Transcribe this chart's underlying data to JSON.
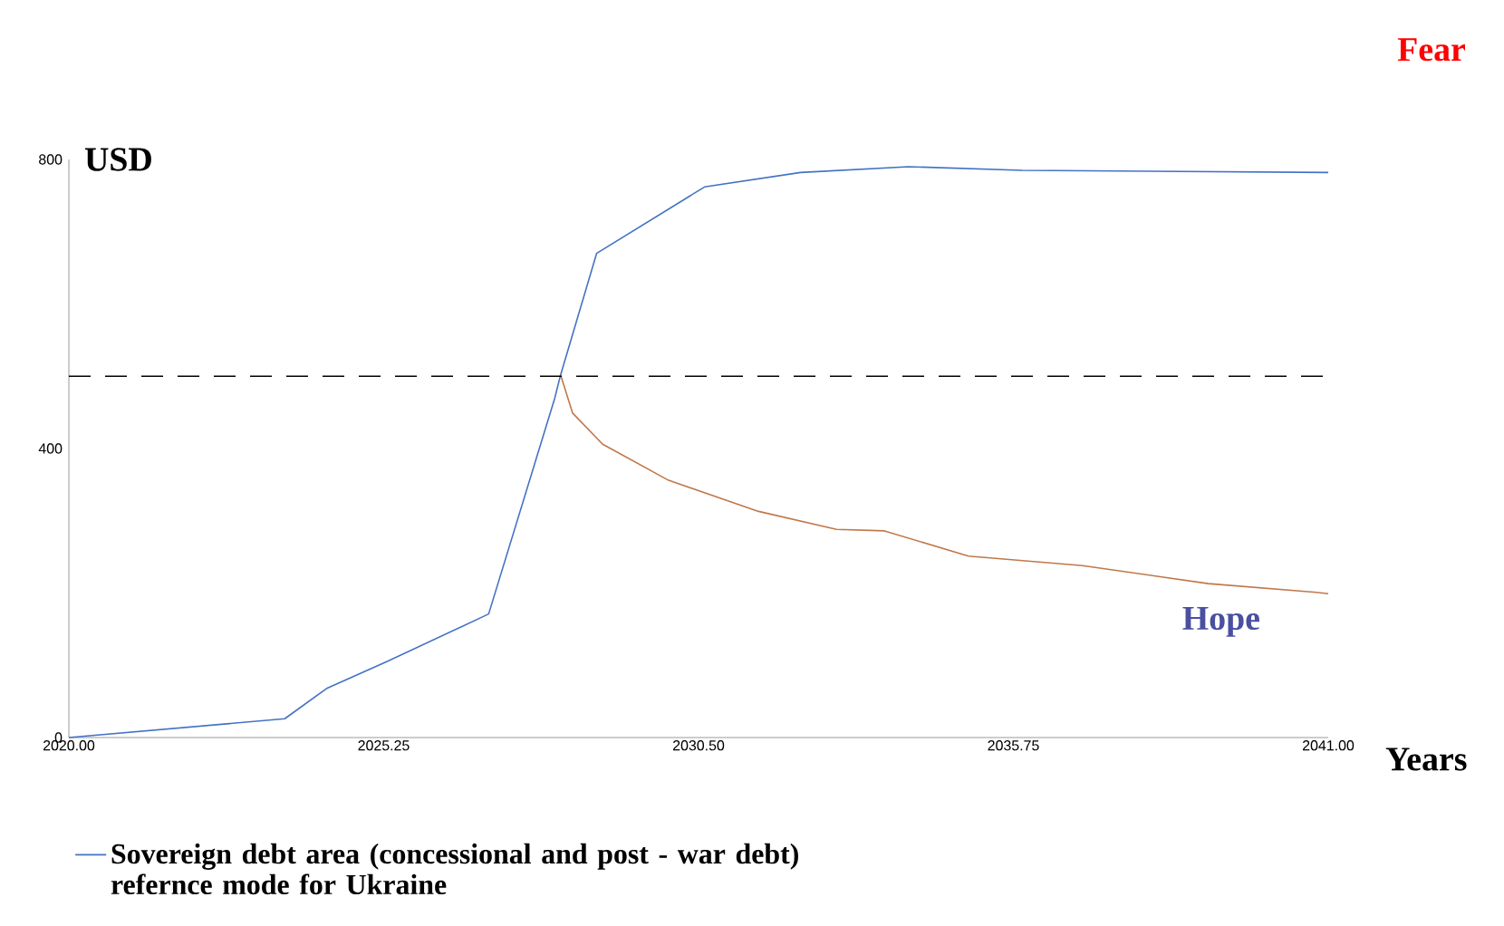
{
  "chart_data": {
    "type": "line",
    "xlabel": "Years",
    "ylabel": "USD",
    "xlim": [
      2020,
      2041
    ],
    "ylim": [
      0,
      800
    ],
    "xticks": [
      {
        "value": 2020,
        "label": "2020.00"
      },
      {
        "value": 2025.25,
        "label": "2025.25"
      },
      {
        "value": 2030.5,
        "label": "2030.50"
      },
      {
        "value": 2035.75,
        "label": "2035.75"
      },
      {
        "value": 2041,
        "label": "2041.00"
      }
    ],
    "yticks": [
      0,
      400,
      800
    ],
    "series": [
      {
        "name": "Sovereign debt area (concessional and post - war debt) refernce mode for Ukraine",
        "color": "#4472c4",
        "x": [
          2020,
          2023.6,
          2024.3,
          2025.3,
          2027.0,
          2028.1,
          2028.2,
          2028.8,
          2030.6,
          2032.2,
          2034.0,
          2035.9,
          2041.0
        ],
        "values": [
          0,
          26,
          68,
          105,
          171,
          469,
          502,
          670,
          762,
          782,
          790,
          785,
          782
        ]
      },
      {
        "color": "#c0784a",
        "x": [
          2028.2,
          2028.4,
          2028.9,
          2030.0,
          2031.5,
          2032.8,
          2033.6,
          2035.0,
          2036.9,
          2039.0,
          2040.8,
          2041.0
        ],
        "values": [
          502,
          449,
          406,
          356,
          313,
          288,
          286,
          251,
          238,
          213,
          201,
          199
        ]
      }
    ],
    "ref_lines": [
      {
        "axis": "y",
        "value": 500,
        "color": "#000000",
        "line_style": "dashed"
      }
    ],
    "annotations": [
      "Fear",
      "Hope"
    ],
    "legend": "bottom",
    "grid": false,
    "marker": "none",
    "line_style": "solid"
  }
}
